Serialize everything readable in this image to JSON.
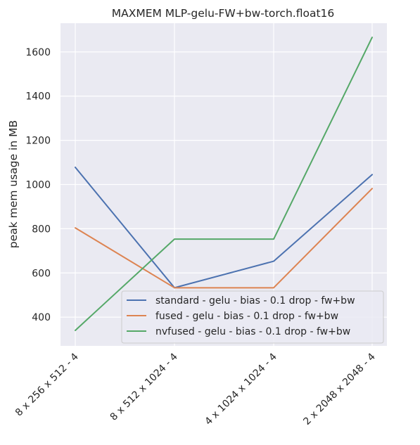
{
  "chart_data": {
    "type": "line",
    "title": "MAXMEM MLP-gelu-FW+bw-torch.float16",
    "xlabel": "",
    "ylabel": "peak mem usage in MB",
    "categories": [
      "8 x 256 x 512 - 4",
      "8 x 512 x 1024 - 4",
      "4 x 1024 x 1024 - 4",
      "2 x 2048 x 2048 - 4"
    ],
    "ylim": [
      270,
      1730
    ],
    "yticks": [
      400,
      600,
      800,
      1000,
      1200,
      1400,
      1600
    ],
    "grid": true,
    "legend_position": "lower-right",
    "background": "#eaeaf2",
    "series": [
      {
        "name": "standard - gelu -  bias - 0.1 drop - fw+bw",
        "color": "#4c72b0",
        "values": [
          1078,
          533,
          653,
          1045
        ]
      },
      {
        "name": "fused - gelu -  bias - 0.1 drop - fw+bw",
        "color": "#dd8452",
        "values": [
          804,
          533,
          533,
          982
        ]
      },
      {
        "name": "nvfused - gelu -  bias - 0.1 drop - fw+bw",
        "color": "#55a868",
        "values": [
          340,
          753,
          753,
          1666
        ]
      }
    ]
  }
}
